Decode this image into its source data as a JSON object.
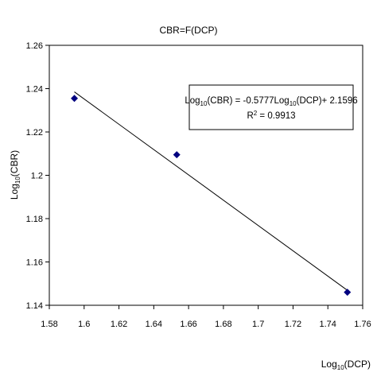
{
  "chart_data": {
    "type": "scatter",
    "title": "CBR=F(DCP)",
    "xlabel": "Log10(DCP)",
    "ylabel": "Log10(CBR)",
    "xlim": [
      1.58,
      1.76
    ],
    "ylim": [
      1.14,
      1.26
    ],
    "xticks": [
      1.58,
      1.6,
      1.62,
      1.64,
      1.66,
      1.68,
      1.7,
      1.72,
      1.74,
      1.76
    ],
    "yticks": [
      1.14,
      1.16,
      1.18,
      1.2,
      1.22,
      1.24,
      1.26
    ],
    "xtick_labels": [
      "1.58",
      "1.6",
      "1.62",
      "1.64",
      "1.66",
      "1.68",
      "1.7",
      "1.72",
      "1.74",
      "1.76"
    ],
    "ytick_labels": [
      "1.14",
      "1.16",
      "1.18",
      "1.2",
      "1.22",
      "1.24",
      "1.26"
    ],
    "grid": false,
    "series": [
      {
        "x": [
          1.5944,
          1.6532,
          1.7512
        ],
        "y": [
          1.2355,
          1.2095,
          1.146
        ],
        "marker": "diamond",
        "color": "#000080"
      }
    ],
    "trendline": {
      "x": [
        1.5944,
        1.7512
      ],
      "y": [
        1.2385,
        1.1469
      ],
      "color": "#000000"
    },
    "annotation": {
      "equation": {
        "lhs_pre": "Log",
        "lhs_sub": "10",
        "lhs_post": "(CBR) = -0.5777Log",
        "rhs_sub": "10",
        "rhs_post": "(DCP)+ 2.1596"
      },
      "r2": {
        "pre": "R",
        "sup": "2",
        "post": " = 0.9913"
      }
    },
    "xlabel_parts": {
      "pre": "Log",
      "sub": "10",
      "post": "(DCP)"
    },
    "ylabel_parts": {
      "pre": "Log",
      "sub": "10",
      "post": "(CBR)"
    }
  }
}
